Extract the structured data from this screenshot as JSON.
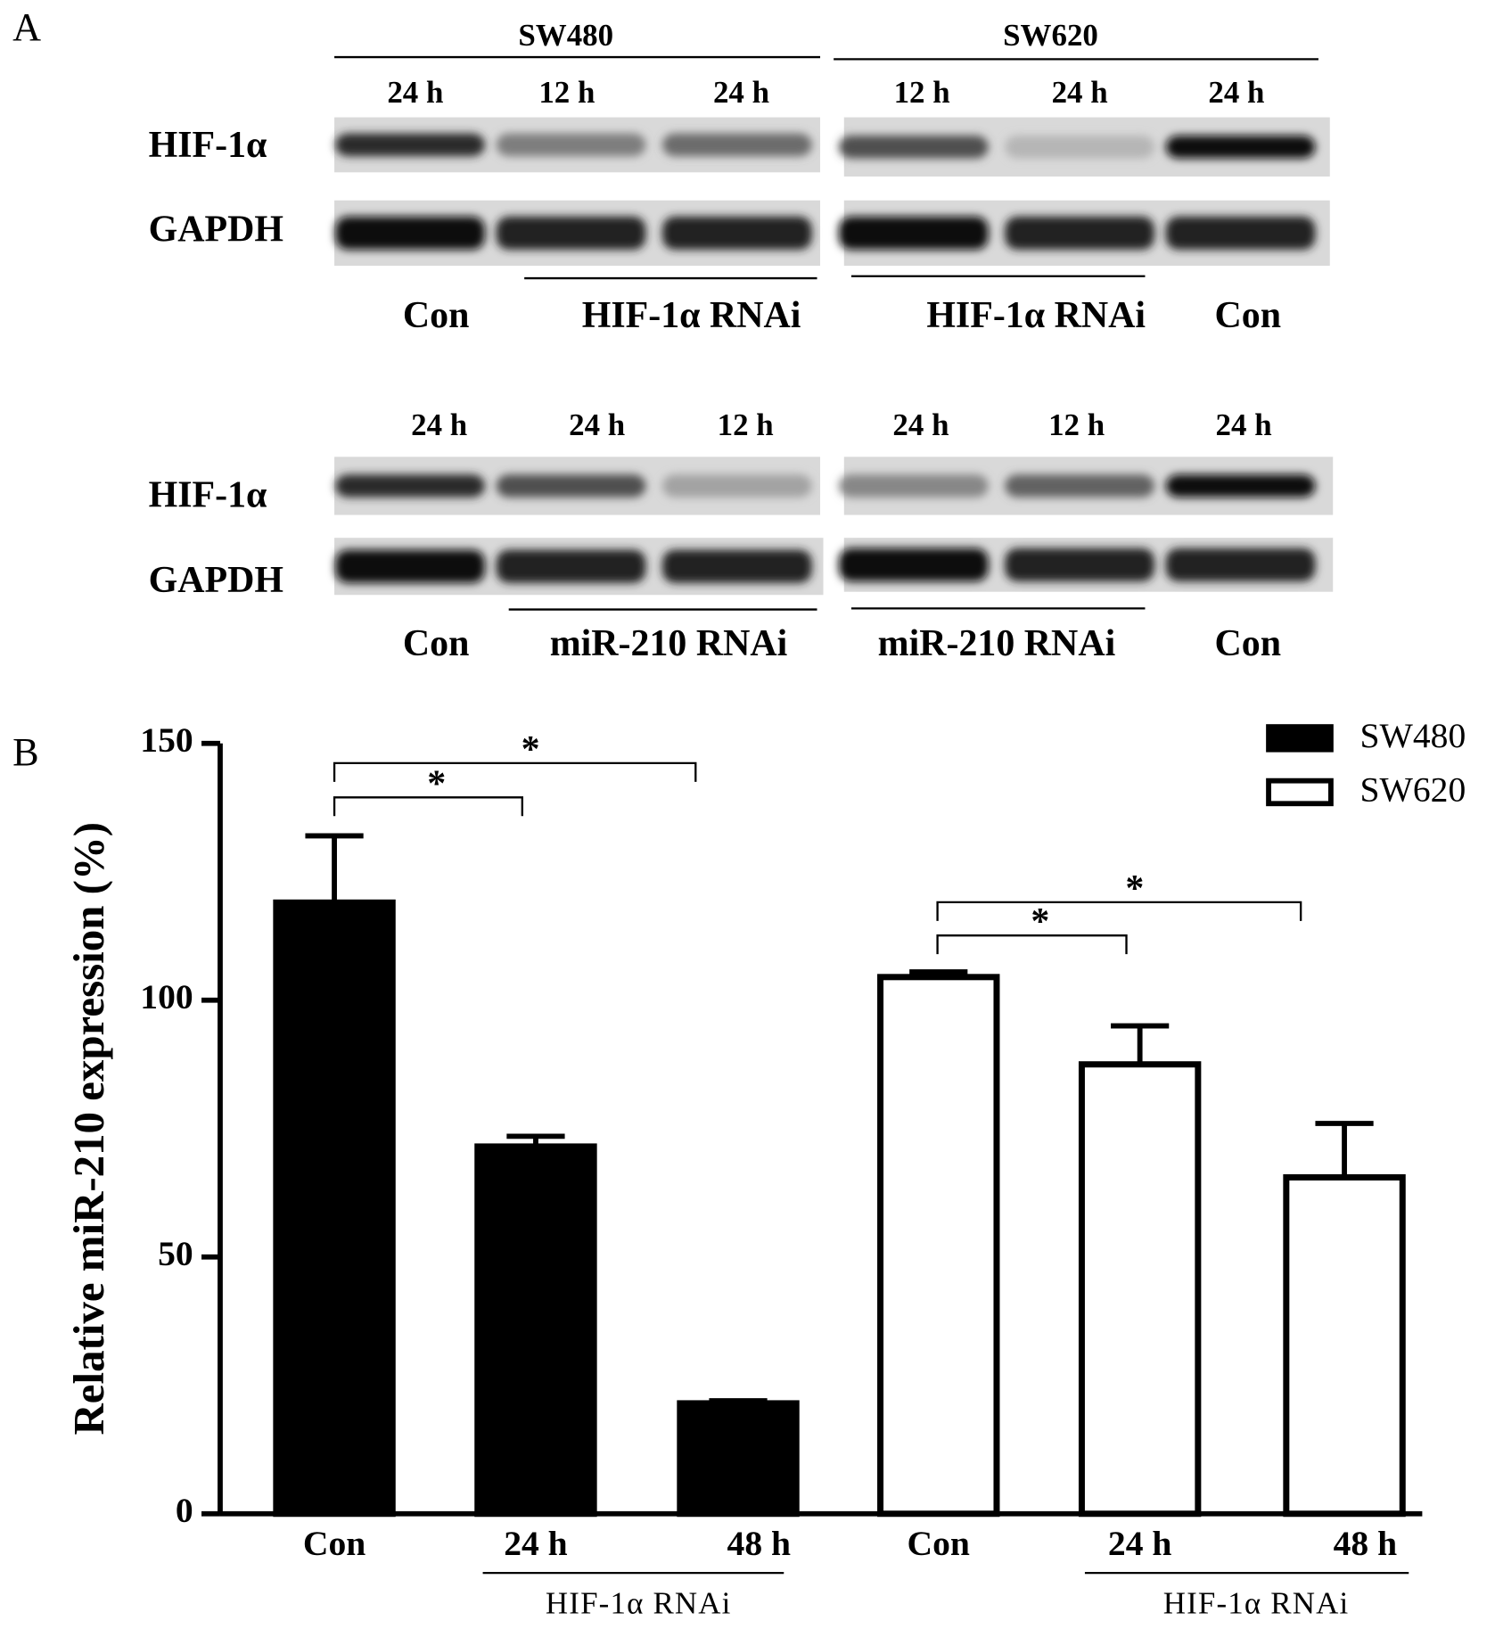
{
  "panel_a": {
    "label": "A",
    "blots": [
      {
        "cell_lines": [
          "SW480",
          "SW620"
        ],
        "lanes": [
          "24 h",
          "12 h",
          "24 h",
          "12 h",
          "24 h",
          "24 h"
        ],
        "rows": [
          "HIF-1α",
          "GAPDH"
        ],
        "groups": [
          "Con",
          "HIF-1α RNAi",
          "HIF-1α RNAi",
          "Con"
        ]
      },
      {
        "lanes": [
          "24 h",
          "24 h",
          "12 h",
          "24 h",
          "12 h",
          "24 h"
        ],
        "rows": [
          "HIF-1α",
          "GAPDH"
        ],
        "groups": [
          "Con",
          "miR-210 RNAi",
          "miR-210 RNAi",
          "Con"
        ]
      }
    ]
  },
  "chart_data": {
    "type": "bar",
    "panel_label": "B",
    "ylabel": "Relative miR-210 expression (%)",
    "categories": [
      "Con",
      "24 h",
      "48 h",
      "Con",
      "24 h",
      "48 h"
    ],
    "group_labels": [
      "HIF-1α RNAi",
      "HIF-1α RNAi"
    ],
    "series": [
      {
        "name": "SW480",
        "color": "#000000",
        "values": [
          119,
          71.5,
          21.5,
          null,
          null,
          null
        ],
        "errors": [
          13,
          2,
          0.5,
          null,
          null,
          null
        ]
      },
      {
        "name": "SW620",
        "color": "#ffffff",
        "values": [
          null,
          null,
          null,
          104.5,
          87.5,
          65.5
        ],
        "errors": [
          null,
          null,
          null,
          1,
          7.5,
          10.5
        ]
      }
    ],
    "ylim": [
      0,
      150
    ],
    "yticks": [
      0,
      50,
      100,
      150
    ],
    "legend": "upper right",
    "annotations": [
      "*",
      "*",
      "*",
      "*"
    ]
  }
}
